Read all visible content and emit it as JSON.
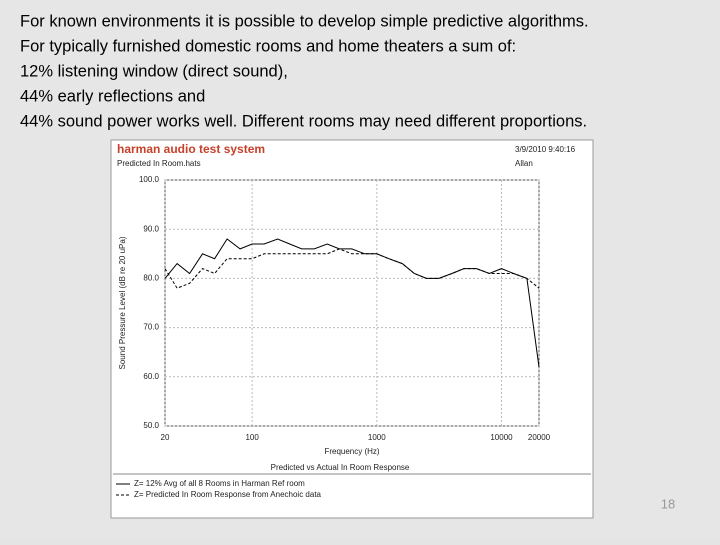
{
  "slide": {
    "lines": [
      "For known environments it is possible to develop simple predictive algorithms.",
      "For typically furnished domestic rooms and home theaters a sum of:",
      "12% listening window (direct sound),",
      "44% early reflections and",
      "44% sound power works well.  Different rooms may need different proportions."
    ],
    "page_number": "18"
  },
  "chart_data": {
    "type": "line",
    "title": "harman audio test system",
    "subtitle": "Predicted In Room.hats",
    "date": "3/9/2010 9:40:16",
    "author": "Allan",
    "xlabel": "Frequency (Hz)",
    "ylabel": "Sound Pressure Level (dB re 20 uPa)",
    "legend_title": "Predicted vs Actual In Room Response",
    "x": [
      20,
      25,
      31.5,
      40,
      50,
      63,
      80,
      100,
      125,
      160,
      200,
      250,
      315,
      400,
      500,
      630,
      800,
      1000,
      1250,
      1600,
      2000,
      2500,
      3150,
      4000,
      5000,
      6300,
      8000,
      10000,
      12500,
      16000,
      20000
    ],
    "series": [
      {
        "name": "Z= 12% Avg of all 8 Rooms in Harman Ref room",
        "color": "#000000",
        "style": "solid",
        "values": [
          80,
          83,
          81,
          85,
          84,
          88,
          86,
          87,
          87,
          88,
          87,
          86,
          86,
          87,
          86,
          86,
          85,
          85,
          84,
          83,
          81,
          80,
          80,
          81,
          82,
          82,
          81,
          82,
          81,
          80,
          62
        ]
      },
      {
        "name": "Z= Predicted In Room Response from Anechoic data",
        "color": "#000000",
        "style": "dashed",
        "values": [
          82,
          78,
          79,
          82,
          81,
          84,
          84,
          84,
          85,
          85,
          85,
          85,
          85,
          85,
          86,
          85,
          85,
          85,
          84,
          83,
          81,
          80,
          80,
          81,
          82,
          82,
          81,
          81,
          81,
          80,
          78
        ]
      }
    ],
    "xlim": [
      20,
      20000
    ],
    "log_x": true,
    "xticks": [
      20,
      100,
      1000,
      10000,
      20000
    ],
    "ylim": [
      50,
      100
    ],
    "yticks": [
      {
        "value": 50,
        "label": "50.0"
      },
      {
        "value": 60,
        "label": "60.0"
      },
      {
        "value": 70,
        "label": "70.0"
      },
      {
        "value": 80,
        "label": "80.0"
      },
      {
        "value": 90,
        "label": "90.0"
      },
      {
        "value": 100,
        "label": "100.0"
      }
    ],
    "grid": true
  }
}
